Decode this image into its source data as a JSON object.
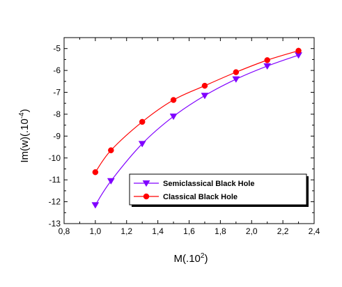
{
  "chart_data": {
    "type": "line",
    "title": "",
    "xlabel": "M(.10",
    "xlabel_sup": "2",
    "xlabel_end": ")",
    "ylabel": "Im(w)(.10",
    "ylabel_sup": "-4",
    "ylabel_end": ")",
    "xlim": [
      0.8,
      2.4
    ],
    "ylim": [
      -13,
      -4.5
    ],
    "x_ticks": [
      "0,8",
      "1,0",
      "1,2",
      "1,4",
      "1,6",
      "1,8",
      "2,0",
      "2,2",
      "2,4"
    ],
    "y_ticks": [
      "-13",
      "-12",
      "-11",
      "-10",
      "-9",
      "-8",
      "-7",
      "-6",
      "-5"
    ],
    "grid": false,
    "legend_position": "lower-right",
    "series": [
      {
        "name": "Semiclassical Black Hole",
        "color": "#8000ff",
        "marker": "triangle-down",
        "x": [
          1.0,
          1.1,
          1.3,
          1.5,
          1.7,
          1.9,
          2.1,
          2.3
        ],
        "y": [
          -12.15,
          -11.05,
          -9.35,
          -8.1,
          -7.15,
          -6.4,
          -5.8,
          -5.3
        ]
      },
      {
        "name": "Classical Black Hole",
        "color": "#ff0000",
        "marker": "circle",
        "x": [
          1.0,
          1.1,
          1.3,
          1.5,
          1.7,
          1.9,
          2.1,
          2.3
        ],
        "y": [
          -10.65,
          -9.65,
          -8.35,
          -7.35,
          -6.7,
          -6.08,
          -5.53,
          -5.1
        ]
      }
    ]
  }
}
